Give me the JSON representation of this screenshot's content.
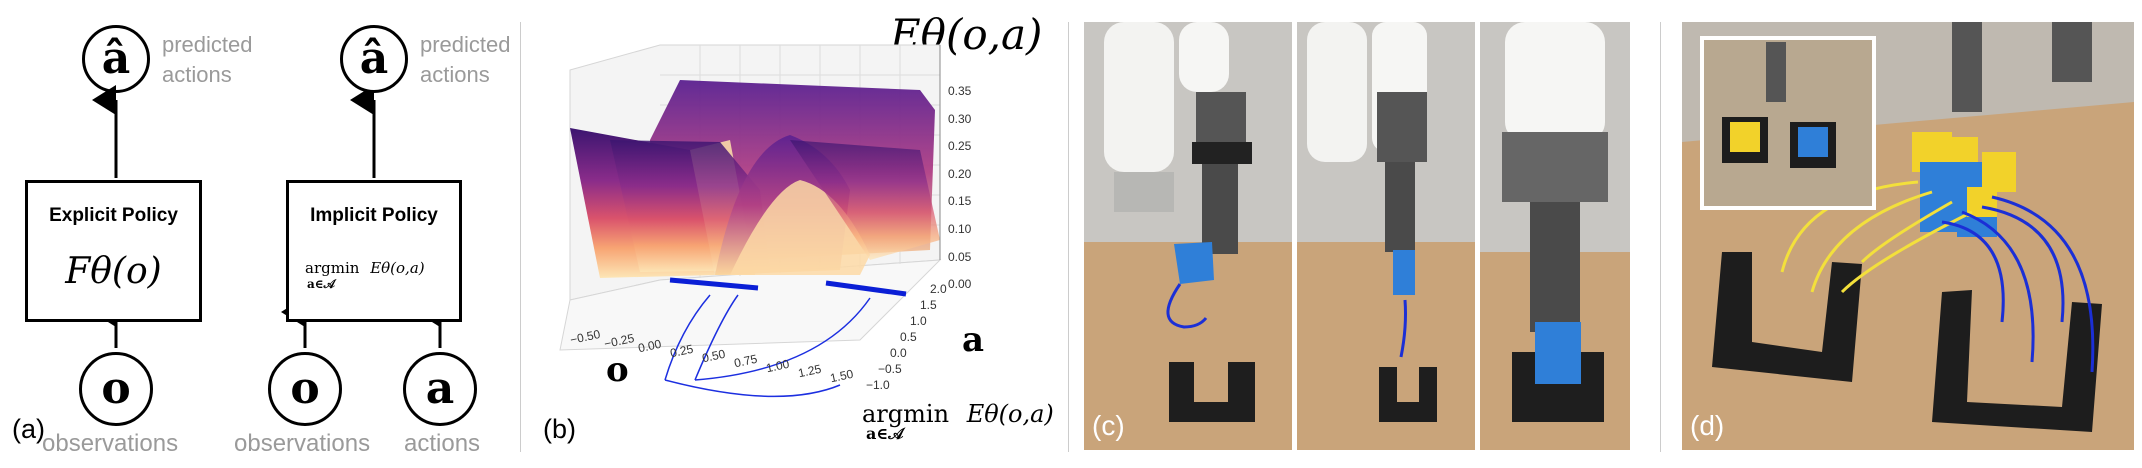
{
  "panel_a": {
    "label": "(a)",
    "explicit": {
      "output_symbol": "â",
      "predicted_label_line1": "predicted",
      "predicted_label_line2": "actions",
      "title": "Explicit Policy",
      "formula": "Fθ(o)",
      "input_symbol": "o",
      "input_label": "observations"
    },
    "implicit": {
      "output_symbol": "â",
      "predicted_label_line1": "predicted",
      "predicted_label_line2": "actions",
      "title": "Implicit Policy",
      "formula_argmin": "argmin",
      "formula_sub": "a∈𝒜",
      "formula_energy": "Eθ(o,a)",
      "input_obs_symbol": "o",
      "input_obs_label": "observations",
      "input_act_symbol": "a",
      "input_act_label": "actions"
    }
  },
  "panel_b": {
    "label": "(b)",
    "title": "Eθ(o,a)",
    "z_ticks": [
      "0.35",
      "0.30",
      "0.25",
      "0.20",
      "0.15",
      "0.10",
      "0.05",
      "0.00"
    ],
    "x_ticks": [
      "−0.50",
      "−0.25",
      "0.00",
      "0.25",
      "0.50",
      "0.75",
      "1.00",
      "1.25",
      "1.50"
    ],
    "y_ticks": [
      "2.0",
      "1.5",
      "1.0",
      "0.5",
      "0.0",
      "−0.5",
      "−1.0"
    ],
    "x_axis_label": "o",
    "y_axis_label": "a",
    "annotation_argmin": "argmin",
    "annotation_sub": "a∈𝒜",
    "annotation_energy": "Eθ(o,a)"
  },
  "panel_c": {
    "label": "(c)"
  },
  "panel_d": {
    "label": "(d)"
  },
  "colors": {
    "blue_block": "#2f7fd8",
    "yellow_block": "#f2d22a",
    "arrow_blue": "#1b2fd6",
    "arrow_yellow": "#f3e03b",
    "wood": "#c9a47a"
  }
}
